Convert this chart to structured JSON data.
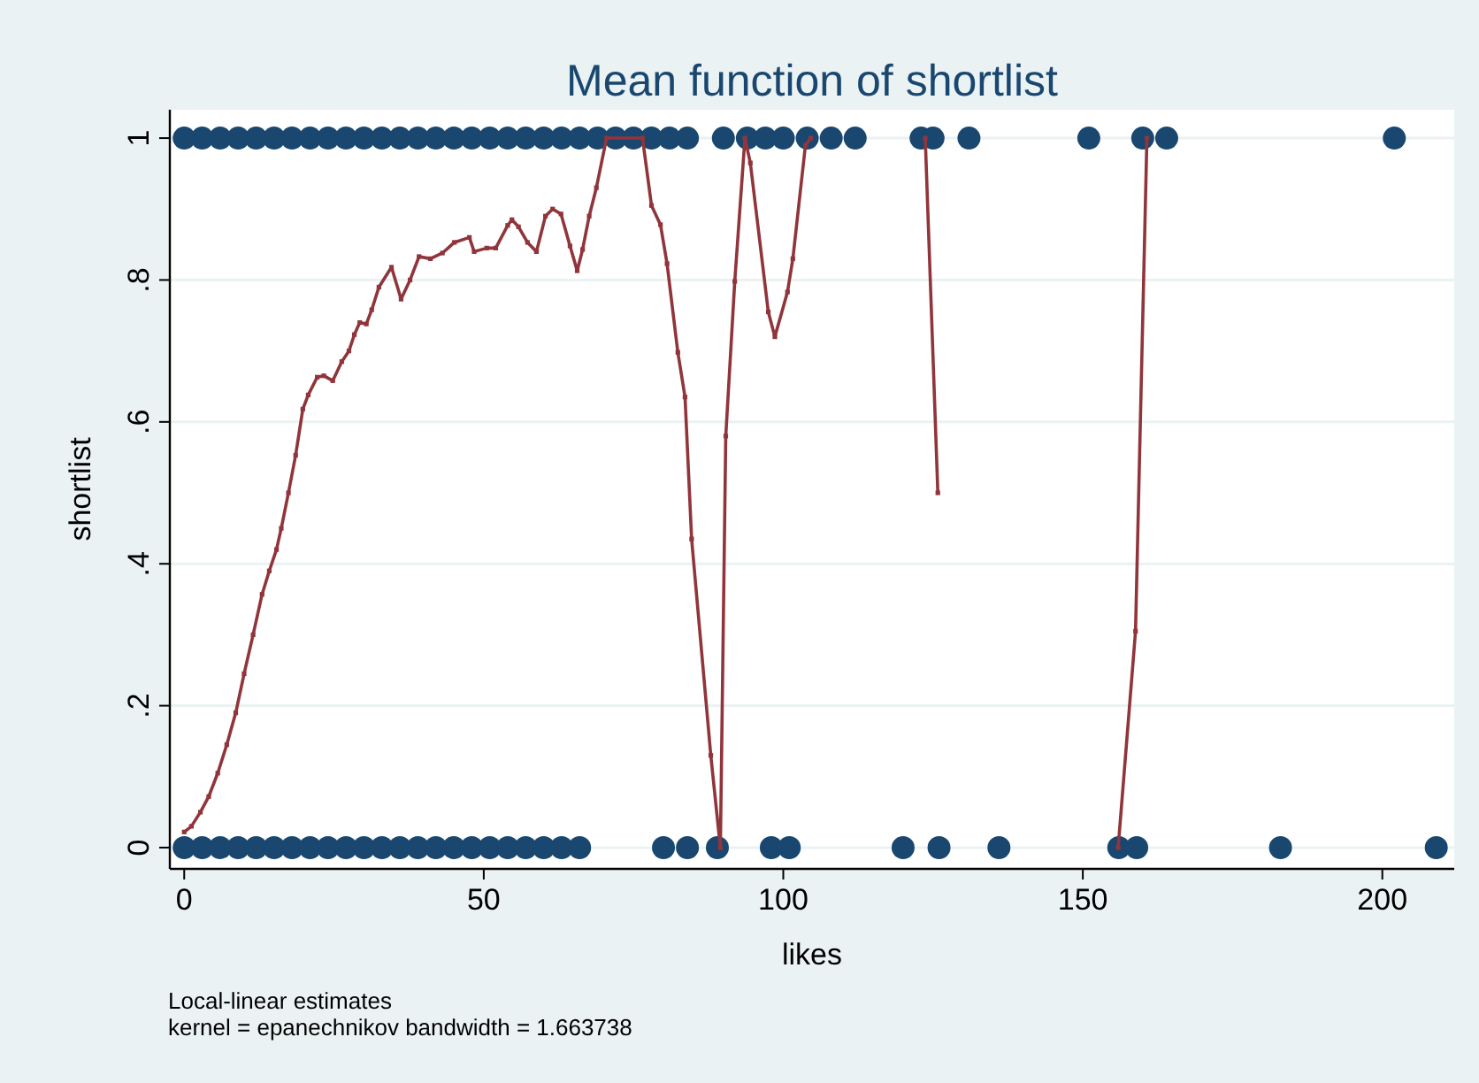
{
  "chart_data": {
    "type": "scatter",
    "title": "Mean function of shortlist",
    "xlabel": "likes",
    "ylabel": "shortlist",
    "xlim": [
      -2.4,
      212
    ],
    "ylim": [
      -0.03,
      1.04
    ],
    "xticks": [
      0,
      50,
      100,
      150,
      200
    ],
    "yticks": [
      {
        "value": 0,
        "label": "0"
      },
      {
        "value": 0.2,
        "label": ".2"
      },
      {
        "value": 0.4,
        "label": ".4"
      },
      {
        "value": 0.6,
        "label": ".6"
      },
      {
        "value": 0.8,
        "label": ".8"
      },
      {
        "value": 1,
        "label": "1"
      }
    ],
    "grid": "y",
    "annotations": [
      "Local-linear estimates",
      "kernel = epanechnikov bandwidth = 1.663738"
    ],
    "series": [
      {
        "color": "#1a476f",
        "marker": "circle",
        "x": [
          0,
          3,
          6,
          9,
          12,
          15,
          18,
          21,
          24,
          27,
          30,
          33,
          36,
          39,
          42,
          45,
          48,
          51,
          54,
          57,
          60,
          63,
          66,
          69,
          72,
          75,
          78,
          81,
          84,
          90,
          94,
          97,
          100,
          104,
          108,
          112,
          123,
          125,
          131,
          151,
          160,
          164,
          202
        ],
        "values": [
          1,
          1,
          1,
          1,
          1,
          1,
          1,
          1,
          1,
          1,
          1,
          1,
          1,
          1,
          1,
          1,
          1,
          1,
          1,
          1,
          1,
          1,
          1,
          1,
          1,
          1,
          1,
          1,
          1,
          1,
          1,
          1,
          1,
          1,
          1,
          1,
          1,
          1,
          1,
          1,
          1,
          1,
          1
        ]
      },
      {
        "color": "#1a476f",
        "marker": "circle",
        "x": [
          0,
          3,
          6,
          9,
          12,
          15,
          18,
          21,
          24,
          27,
          30,
          33,
          36,
          39,
          42,
          45,
          48,
          51,
          54,
          57,
          60,
          63,
          66,
          80,
          84,
          89,
          98,
          101,
          120,
          126,
          136,
          156,
          159,
          183,
          209
        ],
        "values": [
          0,
          0,
          0,
          0,
          0,
          0,
          0,
          0,
          0,
          0,
          0,
          0,
          0,
          0,
          0,
          0,
          0,
          0,
          0,
          0,
          0,
          0,
          0,
          0,
          0,
          0,
          0,
          0,
          0,
          0,
          0,
          0,
          0,
          0,
          0
        ]
      },
      {
        "type": "line",
        "color": "#90353b",
        "marker": "square",
        "x": [
          0,
          1.2,
          2.7,
          4.1,
          5.6,
          7.1,
          8.6,
          10,
          11.5,
          13,
          14.2,
          15.4,
          16.2,
          17.4,
          18.6,
          19.8,
          20.7,
          22.2,
          23.3,
          24.8,
          26.3,
          27.5,
          28.4,
          29.3,
          30.4,
          31.3,
          32.5,
          34.6,
          36.2,
          37.7,
          39.2,
          41.1,
          43.1,
          45.1,
          47.6,
          48.4,
          50.5,
          52,
          54,
          54.7,
          55.8,
          57.3,
          58.8,
          60.3,
          61.5,
          62.9,
          64.4,
          65.6,
          66.5,
          67.6,
          68.8,
          70.5,
          76.5,
          78,
          79.5,
          80.6,
          82.4,
          83.6,
          84.7,
          87.9,
          89.5,
          90.4,
          91.9,
          93.6,
          94.5,
          97.5,
          98.6,
          100.7,
          101.6,
          103.7,
          104.6,
          114,
          123.7,
          125.8,
          140,
          155.9,
          158.8,
          160.7
        ],
        "values": [
          0.022,
          0.03,
          0.05,
          0.072,
          0.105,
          0.145,
          0.19,
          0.245,
          0.3,
          0.357,
          0.39,
          0.42,
          0.45,
          0.5,
          0.553,
          0.618,
          0.638,
          0.663,
          0.665,
          0.658,
          0.685,
          0.7,
          0.723,
          0.74,
          0.738,
          0.758,
          0.79,
          0.818,
          0.773,
          0.8,
          0.833,
          0.83,
          0.838,
          0.853,
          0.86,
          0.84,
          0.845,
          0.845,
          0.877,
          0.885,
          0.875,
          0.853,
          0.84,
          0.89,
          0.9,
          0.893,
          0.848,
          0.813,
          0.843,
          0.89,
          0.93,
          1,
          1,
          0.905,
          0.878,
          0.823,
          0.698,
          0.635,
          0.435,
          0.13,
          0,
          0.58,
          0.798,
          1,
          0.965,
          0.755,
          0.72,
          0.783,
          0.83,
          0.99,
          1,
          null,
          1,
          0.5,
          null,
          0,
          0.305,
          1
        ]
      }
    ]
  }
}
